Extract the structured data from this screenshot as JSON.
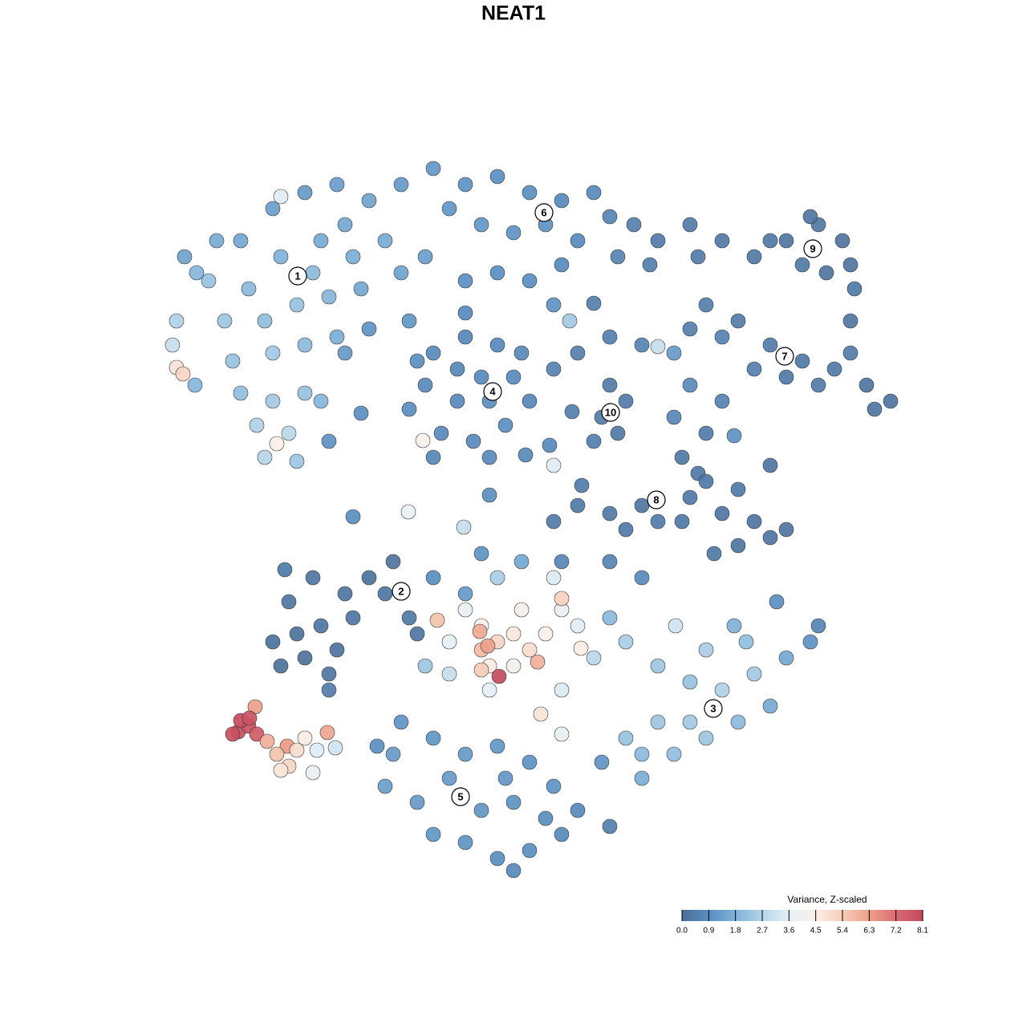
{
  "chart_data": {
    "type": "scatter",
    "title": "NEAT1",
    "xlim": [
      19,
      114
    ],
    "ylim": [
      -110,
      -18
    ],
    "x": [
      23,
      26,
      30,
      34,
      38,
      42,
      46,
      50,
      54,
      48,
      44,
      40,
      35,
      31,
      28,
      33,
      37,
      41,
      45,
      50,
      53,
      22,
      21.5,
      22,
      22.8,
      24.3,
      29,
      34,
      38,
      42,
      30,
      34,
      38,
      32,
      36,
      34.5,
      33,
      37,
      40,
      43,
      46,
      51,
      35,
      27,
      24.5,
      41,
      45,
      39,
      43,
      58,
      62,
      66,
      70,
      74,
      68,
      64,
      60,
      56,
      72,
      76,
      79,
      82,
      81,
      77,
      70,
      66,
      69,
      71,
      62,
      58,
      90,
      94,
      98,
      102,
      105,
      106,
      100,
      96,
      87,
      101,
      106.5,
      103,
      86,
      106,
      88,
      92,
      96,
      100,
      104,
      108,
      111,
      106,
      102,
      94,
      90,
      86,
      109,
      98,
      54,
      58,
      62,
      64,
      61,
      57,
      53,
      51,
      55,
      59,
      63,
      66,
      65,
      60,
      54,
      52.7,
      52,
      58,
      61,
      57,
      72,
      76,
      80,
      76,
      75,
      78,
      74,
      77,
      69,
      82,
      71.3,
      84,
      86,
      90,
      84,
      88,
      85,
      87,
      91.5,
      80,
      76,
      72,
      69,
      78,
      86,
      90,
      94,
      96,
      92,
      89,
      85,
      88,
      92,
      96,
      98,
      82,
      44,
      50.9,
      57.8,
      61,
      65.5,
      69,
      68.5,
      72.5,
      74,
      34,
      37,
      40,
      42,
      38,
      35,
      41,
      36,
      39,
      43,
      46,
      49,
      48,
      51,
      52,
      44,
      35.5,
      41,
      58,
      60,
      62,
      60,
      64,
      66,
      68,
      70,
      72,
      61,
      64,
      67,
      56,
      54.5,
      59.8,
      60.8,
      62.2,
      70,
      72.4,
      60,
      65,
      69,
      62,
      56,
      53,
      74,
      78,
      76,
      65,
      60,
      54,
      58,
      70,
      76,
      80,
      67.4,
      61,
      70,
      82,
      86,
      90,
      94,
      98,
      101,
      89,
      86,
      82,
      80,
      84,
      88,
      92,
      96,
      80,
      78,
      93,
      91.5,
      84.2,
      102,
      96.8,
      88,
      50,
      54,
      58,
      62,
      66,
      69,
      72,
      76,
      70,
      66,
      62,
      58,
      54,
      52,
      57.5,
      48,
      49,
      64,
      60,
      68,
      56,
      63,
      70,
      75,
      47,
      64,
      29.7,
      31,
      30,
      32,
      29,
      31.8,
      33.3,
      35.8,
      34.5,
      37,
      38,
      36,
      35,
      39,
      41.8,
      40.8,
      39.5,
      31.1
    ],
    "y": [
      -32,
      -35,
      -30,
      -26,
      -24,
      -23,
      -25,
      -23,
      -21,
      -30,
      -32,
      -30,
      -32,
      -36,
      -40,
      -40,
      -38,
      -37,
      -36,
      -34,
      -32,
      -40,
      -43,
      -45.8,
      -46.6,
      -48,
      -45,
      -44,
      -43,
      -42,
      -49,
      -50,
      -49,
      -53,
      -54,
      -55.3,
      -57,
      -57.5,
      -50,
      -44,
      -41,
      -40,
      -24.5,
      -30,
      -34,
      -55,
      -51.5,
      -34,
      -28,
      -23,
      -22,
      -24,
      -25,
      -24,
      -28,
      -29,
      -28,
      -26,
      -30,
      -27,
      -28,
      -30,
      -33,
      -32,
      -33,
      -35,
      -38,
      -40,
      -34,
      -35,
      -30,
      -32,
      -30,
      -28,
      -30,
      -33,
      -33,
      -30,
      -32,
      -27,
      -36,
      -34,
      -28,
      -40,
      -38,
      -40,
      -43,
      -45,
      -46,
      -48,
      -50,
      -44,
      -48,
      -46,
      -42,
      -41,
      -51,
      -47,
      -44,
      -42,
      -43,
      -47,
      -50,
      -50,
      -48,
      -51,
      -54,
      -55,
      -53,
      -50,
      -44,
      -47,
      -57,
      -54.9,
      -45,
      -39,
      -57,
      -46,
      -44,
      -42,
      -43,
      -48,
      -52,
      -50,
      -55,
      -54,
      -46,
      -43.2,
      -51.3,
      -44,
      -48,
      -50,
      -52,
      -54,
      -57,
      -59,
      -54.3,
      -63,
      -64,
      -63,
      -65,
      -66,
      -62,
      -64,
      -65,
      -67,
      -68,
      -69,
      -65,
      -60,
      -61,
      -58,
      -66,
      -65,
      -64.4,
      -63.8,
      -65.7,
      -61.7,
      -56.7,
      -58,
      -55.5,
      -60.5,
      -37.8,
      -80,
      -79,
      -78,
      -81,
      -82,
      -83,
      -84,
      -75,
      -72,
      -74,
      -72,
      -70,
      -74,
      -77,
      -79,
      -77,
      -71,
      -86,
      -76,
      -78,
      -80,
      -81,
      -79,
      -81,
      -79,
      -76,
      -78,
      -83,
      -83,
      -82.5,
      -80,
      -77.3,
      -78.7,
      -80.5,
      -84.3,
      -74.6,
      -80.8,
      -83.5,
      -76,
      -72,
      -72,
      -84,
      -83,
      -82,
      -80,
      -77,
      -70,
      -69,
      -72,
      -74,
      -70,
      -70,
      -72,
      -89,
      -86,
      -86,
      -83,
      -85,
      -86,
      -84,
      -82,
      -80,
      -88.3,
      -90,
      -90,
      -94,
      -94,
      -92,
      -90,
      -88,
      -97,
      -92,
      -80,
      -78,
      -78,
      -78,
      -75,
      -81,
      -90,
      -92,
      -94,
      -93,
      -95,
      -98,
      -101,
      -103,
      -104,
      -106,
      -107,
      -105,
      -104,
      -100,
      -99.3,
      -98,
      -94,
      -100,
      -101,
      -102,
      -97,
      -97,
      -91.5,
      -95,
      -93,
      -108.5,
      -91.2,
      -90.5,
      -89.8,
      -91.5,
      -91.5,
      -88.1,
      -92.4,
      -93,
      -94,
      -93.5,
      -92,
      -95.5,
      -96,
      -96.3,
      -93.2,
      -91.3,
      -93.5,
      -89.5
    ],
    "values": [
      1.4,
      2.2,
      1.5,
      1.3,
      1.2,
      1.3,
      1.4,
      1.2,
      1.1,
      1.6,
      1.7,
      1.6,
      1.8,
      2.0,
      2.3,
      2.1,
      2.2,
      1.9,
      1.5,
      1.4,
      1.3,
      2.6,
      3.0,
      4.8,
      5.2,
      1.9,
      2.2,
      2.4,
      2.0,
      1.7,
      2.1,
      2.4,
      2.2,
      2.6,
      2.8,
      4.5,
      2.7,
      2.3,
      1.9,
      1.2,
      1.0,
      1.1,
      3.5,
      1.6,
      1.9,
      1.0,
      0.9,
      2.0,
      1.5,
      1.0,
      0.9,
      0.9,
      0.8,
      0.8,
      1.0,
      1.0,
      1.1,
      1.1,
      0.8,
      0.6,
      0.5,
      0.4,
      0.5,
      0.6,
      0.8,
      0.9,
      1.0,
      2.4,
      0.9,
      0.9,
      0.3,
      0.3,
      0.2,
      0.3,
      0.2,
      0.2,
      0.3,
      0.3,
      0.4,
      0.2,
      0.3,
      0.2,
      0.4,
      0.2,
      0.5,
      0.4,
      0.4,
      0.3,
      0.3,
      0.2,
      0.2,
      0.4,
      0.4,
      0.5,
      0.6,
      0.5,
      0.2,
      0.3,
      0.8,
      0.7,
      0.8,
      0.8,
      0.9,
      0.8,
      0.8,
      0.9,
      0.8,
      0.8,
      0.9,
      0.7,
      0.8,
      0.8,
      0.7,
      4.4,
      0.9,
      0.8,
      0.8,
      0.7,
      0.5,
      0.5,
      0.6,
      0.4,
      0.4,
      0.4,
      0.5,
      0.3,
      0.6,
      3.0,
      0.5,
      1.2,
      0.8,
      0.6,
      0.7,
      0.4,
      0.3,
      0.3,
      1.0,
      0.2,
      0.3,
      0.3,
      0.4,
      0.3,
      0.3,
      0.2,
      0.2,
      0.2,
      0.2,
      0.3,
      0.3,
      0.3,
      0.3,
      0.2,
      0.2,
      0.4,
      0.9,
      3.8,
      3.0,
      0.9,
      0.8,
      3.5,
      0.8,
      0.4,
      0.5,
      0.1,
      0.1,
      0.2,
      0.1,
      0.1,
      0.1,
      0.2,
      0.2,
      0.2,
      0.2,
      0.1,
      0.2,
      0.2,
      0.3,
      0.2,
      0.2,
      0.3,
      0.4,
      3.9,
      4.5,
      5.2,
      5.8,
      4.7,
      5.0,
      4.3,
      3.9,
      3.5,
      4.6,
      4.2,
      6.0,
      3.6,
      5.6,
      6.1,
      6.3,
      8.0,
      5.3,
      4.6,
      5.4,
      4.2,
      3.4,
      2.5,
      3.0,
      2.3,
      2.8,
      2.5,
      2.0,
      1.5,
      1.0,
      0.9,
      1.2,
      0.7,
      0.6,
      0.8,
      4.8,
      3.6,
      3.4,
      2.3,
      2.2,
      2.6,
      2.4,
      1.5,
      1.0,
      2.0,
      2.4,
      2.3,
      2.0,
      2.1,
      2.3,
      2.0,
      1.6,
      1.7,
      2.2,
      2.1,
      1.8,
      3.2,
      0.6,
      0.9,
      2.5,
      1.0,
      1.1,
      1.2,
      1.1,
      1.0,
      1.0,
      0.8,
      0.5,
      0.8,
      0.9,
      0.9,
      1.0,
      1.1,
      1.2,
      1.3,
      1.3,
      1.2,
      1.0,
      1.1,
      0.9,
      1.2,
      1.1,
      3.8,
      1.0,
      0.9,
      0.8,
      7.9,
      7.8,
      8.0,
      7.6,
      7.9,
      6.3,
      6.0,
      6.4,
      5.6,
      5.0,
      4.6,
      5.2,
      4.8,
      3.8,
      3.2,
      6.2,
      3.5,
      7.8
    ],
    "colorscale": [
      "#4a6e98",
      "#5a8ec0",
      "#7fb2d9",
      "#b5d5e8",
      "#e4eff5",
      "#fbefe8",
      "#f6cdb8",
      "#eda08a",
      "#d96c73",
      "#c4475a"
    ],
    "clim": [
      0,
      8.1
    ],
    "colorbar_title": "Variance, Z-scaled",
    "colorbar_ticks": [
      {
        "value": 0,
        "label": "0.0"
      },
      0.9,
      1.8,
      2.7,
      3.6,
      4.5,
      5.4,
      6.3,
      7.2,
      8.1
    ],
    "cluster_labels": [
      {
        "label": "1",
        "x": 37.1,
        "y": -34.4
      },
      {
        "label": "2",
        "x": 50,
        "y": -73.7
      },
      {
        "label": "3",
        "x": 88.9,
        "y": -88.3
      },
      {
        "label": "4",
        "x": 61.4,
        "y": -48.8
      },
      {
        "label": "5",
        "x": 57.4,
        "y": -99.3
      },
      {
        "label": "6",
        "x": 67.8,
        "y": -26.5
      },
      {
        "label": "7",
        "x": 97.8,
        "y": -44.4
      },
      {
        "label": "8",
        "x": 81.8,
        "y": -62.3
      },
      {
        "label": "9",
        "x": 101.3,
        "y": -31
      },
      {
        "label": "10",
        "x": 76.1,
        "y": -51.4
      }
    ]
  }
}
